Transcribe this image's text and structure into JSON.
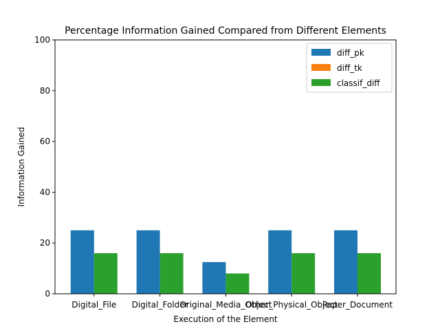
{
  "chart_data": {
    "type": "bar",
    "title": "Percentage Information Gained Compared from Different Elements",
    "xlabel": "Execution of the Element",
    "ylabel": "Information Gained",
    "ylim": [
      0,
      100
    ],
    "yticks": [
      0,
      20,
      40,
      60,
      80,
      100
    ],
    "categories": [
      "Digital_File",
      "Digital_Folder",
      "Original_Media_Object",
      "Other_Physical_Object",
      "Paper_Document"
    ],
    "series": [
      {
        "name": "diff_pk",
        "color": "#1f77b4",
        "values": [
          25,
          25,
          12.5,
          25,
          25
        ]
      },
      {
        "name": "diff_tk",
        "color": "#ff7f0e",
        "values": [
          0,
          0,
          0,
          0,
          0
        ]
      },
      {
        "name": "classif_diff",
        "color": "#2ca02c",
        "values": [
          16,
          16,
          8,
          16,
          16
        ]
      }
    ],
    "legend": "top-right",
    "grid": false
  }
}
